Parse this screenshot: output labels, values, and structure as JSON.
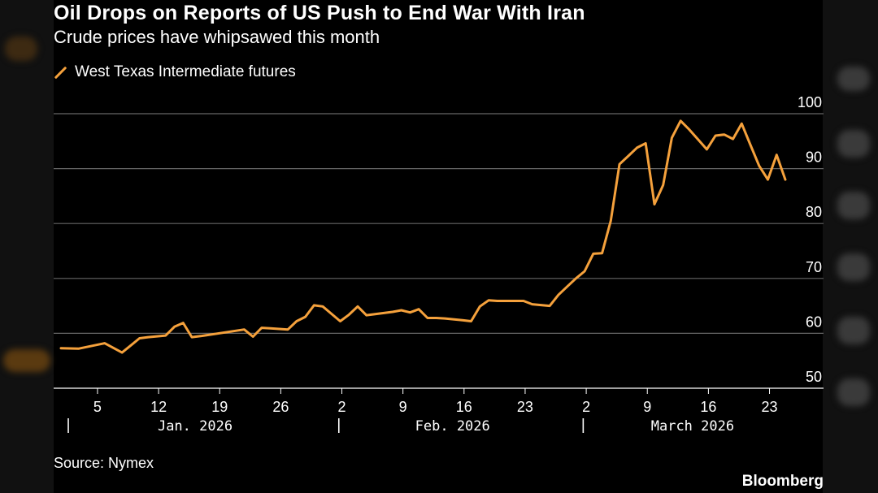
{
  "header": {
    "title": "Oil Drops on Reports of US Push to End War With Iran",
    "subtitle": "Crude prices have whipsawed this month"
  },
  "footer": {
    "source": "Source: Nymex",
    "brand": "Bloomberg"
  },
  "colors": {
    "line": "#f5a13c",
    "grid": "#666666",
    "background": "#000000"
  },
  "chart_data": {
    "type": "line",
    "title": "Oil Drops on Reports of US Push to End War With Iran",
    "subtitle": "Crude prices have whipsawed this month",
    "xlabel": "",
    "ylabel": "",
    "ylim": [
      50,
      100
    ],
    "yticks": [
      50,
      60,
      70,
      80,
      90,
      100
    ],
    "grid": true,
    "legend_position": "top-left",
    "x_axis": {
      "start": "2026-01-01",
      "end": "2026-03-26",
      "day_ticks": [
        {
          "day": 4,
          "label": "5"
        },
        {
          "day": 11,
          "label": "12"
        },
        {
          "day": 18,
          "label": "19"
        },
        {
          "day": 25,
          "label": "26"
        },
        {
          "day": 32,
          "label": "2"
        },
        {
          "day": 39,
          "label": "9"
        },
        {
          "day": 46,
          "label": "16"
        },
        {
          "day": 53,
          "label": "23"
        },
        {
          "day": 60,
          "label": "2"
        },
        {
          "day": 67,
          "label": "9"
        },
        {
          "day": 74,
          "label": "16"
        },
        {
          "day": 81,
          "label": "23"
        }
      ],
      "month_separators": [
        0,
        31,
        59
      ],
      "month_labels": [
        {
          "day": 15,
          "label": "Jan. 2026"
        },
        {
          "day": 44.5,
          "label": "Feb. 2026"
        },
        {
          "day": 72,
          "label": "March 2026"
        }
      ]
    },
    "series": [
      {
        "name": "West Texas Intermediate futures",
        "x_days": [
          0,
          2,
          5,
          7,
          8,
          9,
          10,
          12,
          13,
          14,
          15,
          16,
          21,
          22,
          23,
          24,
          26,
          27,
          28,
          29,
          30,
          32,
          33,
          34,
          35,
          37,
          38,
          39,
          40,
          41,
          42,
          43,
          44,
          46,
          47,
          48,
          49,
          50,
          51,
          53,
          54,
          56,
          57,
          58,
          59,
          60,
          61,
          62,
          63,
          64,
          65,
          66,
          67,
          68,
          69,
          70,
          71,
          72,
          73,
          74,
          75,
          76,
          77,
          78,
          79,
          80,
          81,
          82,
          83
        ],
        "values": [
          57.3,
          57.2,
          58.2,
          56.5,
          57.8,
          59.1,
          59.3,
          59.6,
          61.2,
          61.9,
          59.3,
          59.5,
          60.7,
          59.4,
          61.0,
          60.9,
          60.7,
          62.2,
          63.0,
          65.1,
          64.9,
          62.2,
          63.4,
          64.9,
          63.3,
          63.7,
          63.9,
          64.2,
          63.8,
          64.4,
          62.8,
          62.8,
          62.7,
          62.4,
          62.2,
          64.9,
          66.0,
          65.9,
          65.9,
          65.9,
          65.3,
          65.0,
          67.0,
          68.5,
          70.0,
          71.3,
          74.5,
          74.6,
          80.5,
          90.8,
          92.3,
          93.8,
          94.6,
          83.5,
          87.0,
          95.6,
          98.7,
          97.1,
          95.3,
          93.5,
          96.0,
          96.2,
          95.4,
          98.2,
          94.3,
          90.5,
          88.0,
          92.5,
          88.0
        ]
      }
    ]
  }
}
